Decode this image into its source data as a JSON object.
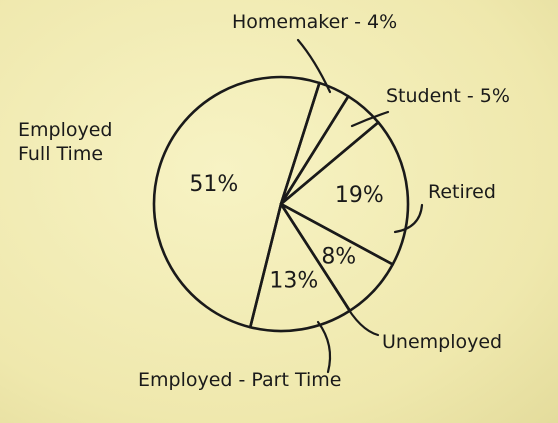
{
  "chart_data": {
    "type": "pie",
    "categories": [
      "Employed Full Time",
      "Homemaker - 4%",
      "Student - 5%",
      "Retired",
      "Unemployed",
      "Employed - Part Time"
    ],
    "values": [
      51,
      4,
      5,
      19,
      8,
      13
    ],
    "value_labels": [
      "51%",
      null,
      null,
      "19%",
      "8%",
      "13%"
    ]
  }
}
